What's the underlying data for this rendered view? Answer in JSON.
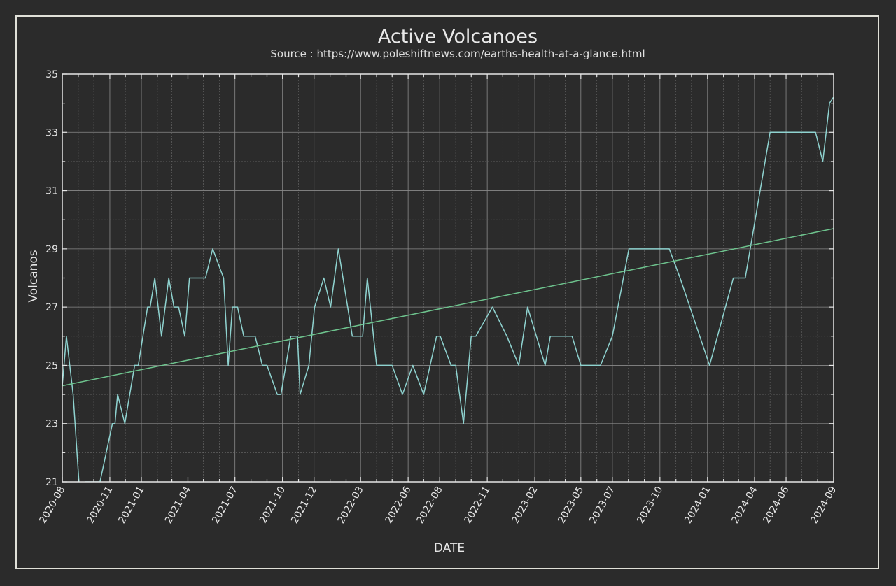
{
  "chart_data": {
    "type": "line",
    "title": "Active Volcanoes",
    "subtitle": "Source : https://www.poleshiftnews.com/earths-health-at-a-glance.html",
    "xlabel": "DATE",
    "ylabel": "Volcanos",
    "xlim": [
      "2020-08-01",
      "2024-09-01"
    ],
    "ylim": [
      21,
      35
    ],
    "yticks": [
      21,
      23,
      25,
      27,
      29,
      31,
      33,
      35
    ],
    "xticks": [
      "2020-08",
      "2020-11",
      "2021-01",
      "2021-04",
      "2021-07",
      "2021-10",
      "2021-12",
      "2022-03",
      "2022-06",
      "2022-08",
      "2022-11",
      "2023-02",
      "2023-05",
      "2023-07",
      "2023-10",
      "2024-01",
      "2024-04",
      "2024-06",
      "2024-09"
    ],
    "grid": true,
    "colors": {
      "data": "#8fd3d0",
      "trend": "#6ec48e",
      "background": "#2b2b2b",
      "frame": "#e0e0d8"
    },
    "series": [
      {
        "values": [
          [
            "2020-08-01",
            24.3
          ],
          [
            "2020-08-09",
            26
          ],
          [
            "2020-08-22",
            24
          ],
          [
            "2020-09-03",
            20.8
          ],
          [
            "2020-09-15",
            21
          ],
          [
            "2020-10-13",
            21
          ],
          [
            "2020-11-06",
            23
          ],
          [
            "2020-11-11",
            23
          ],
          [
            "2020-11-16",
            24
          ],
          [
            "2020-11-30",
            23
          ],
          [
            "2020-12-19",
            25
          ],
          [
            "2020-12-26",
            25
          ],
          [
            "2021-01-13",
            27
          ],
          [
            "2021-01-18",
            27
          ],
          [
            "2021-01-27",
            28
          ],
          [
            "2021-02-09",
            26
          ],
          [
            "2021-02-23",
            28
          ],
          [
            "2021-03-05",
            27
          ],
          [
            "2021-03-14",
            27
          ],
          [
            "2021-03-26",
            26
          ],
          [
            "2021-04-04",
            28
          ],
          [
            "2021-05-05",
            28
          ],
          [
            "2021-05-19",
            29
          ],
          [
            "2021-06-09",
            28
          ],
          [
            "2021-06-18",
            25
          ],
          [
            "2021-06-26",
            27
          ],
          [
            "2021-07-06",
            27
          ],
          [
            "2021-07-18",
            26
          ],
          [
            "2021-08-09",
            26
          ],
          [
            "2021-08-23",
            25
          ],
          [
            "2021-09-01",
            25
          ],
          [
            "2021-09-21",
            24
          ],
          [
            "2021-09-28",
            24
          ],
          [
            "2021-10-17",
            26
          ],
          [
            "2021-10-30",
            26
          ],
          [
            "2021-11-04",
            24
          ],
          [
            "2021-11-21",
            25
          ],
          [
            "2021-12-02",
            27
          ],
          [
            "2021-12-20",
            28
          ],
          [
            "2022-01-02",
            27
          ],
          [
            "2022-01-17",
            29
          ],
          [
            "2022-02-13",
            26
          ],
          [
            "2022-03-05",
            26
          ],
          [
            "2022-03-14",
            28
          ],
          [
            "2022-04-01",
            25
          ],
          [
            "2022-05-01",
            25
          ],
          [
            "2022-05-21",
            24
          ],
          [
            "2022-06-10",
            25
          ],
          [
            "2022-07-01",
            24
          ],
          [
            "2022-07-26",
            26
          ],
          [
            "2022-08-02",
            26
          ],
          [
            "2022-08-23",
            25
          ],
          [
            "2022-09-01",
            25
          ],
          [
            "2022-09-16",
            23
          ],
          [
            "2022-10-01",
            26
          ],
          [
            "2022-10-10",
            26
          ],
          [
            "2022-11-11",
            27
          ],
          [
            "2022-12-09",
            26
          ],
          [
            "2023-01-01",
            25
          ],
          [
            "2023-01-18",
            27
          ],
          [
            "2023-02-21",
            25
          ],
          [
            "2023-03-03",
            26
          ],
          [
            "2023-04-14",
            26
          ],
          [
            "2023-05-01",
            25
          ],
          [
            "2023-06-08",
            25
          ],
          [
            "2023-07-01",
            26
          ],
          [
            "2023-08-02",
            29
          ],
          [
            "2023-10-19",
            29
          ],
          [
            "2023-11-09",
            28
          ],
          [
            "2024-01-05",
            25
          ],
          [
            "2024-02-20",
            28
          ],
          [
            "2024-03-14",
            28
          ],
          [
            "2024-05-01",
            33
          ],
          [
            "2024-07-28",
            33
          ],
          [
            "2024-08-11",
            32
          ],
          [
            "2024-08-24",
            34
          ],
          [
            "2024-09-30",
            35
          ]
        ]
      },
      {
        "values": [
          [
            "2020-08-01",
            24.3
          ],
          [
            "2024-09-30",
            29.8
          ]
        ]
      }
    ]
  }
}
